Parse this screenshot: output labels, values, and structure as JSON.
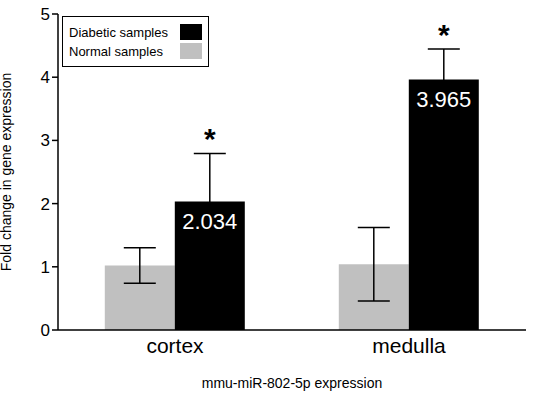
{
  "chart_data": {
    "type": "bar",
    "categories": [
      "cortex",
      "medulla"
    ],
    "x_label": "mmu-miR-802-5p expression",
    "y_label": "Fold change in gene expression",
    "series": [
      {
        "name": "Normal samples",
        "color": "#c0c0c0",
        "values": [
          1.02,
          1.04
        ],
        "error": [
          0.28,
          0.58
        ]
      },
      {
        "name": "Diabetic samples",
        "color": "#000000",
        "values": [
          2.034,
          3.965
        ],
        "error": [
          0.76,
          0.48
        ],
        "data_labels": true
      }
    ],
    "ylim": [
      0,
      5
    ],
    "yticks": [
      0,
      1,
      2,
      3,
      4,
      5
    ],
    "grid": false,
    "legend": "upper left",
    "annotations": [
      {
        "category": "cortex",
        "series": "Diabetic samples",
        "text": "*"
      },
      {
        "category": "medulla",
        "series": "Diabetic samples",
        "text": "*"
      }
    ]
  }
}
